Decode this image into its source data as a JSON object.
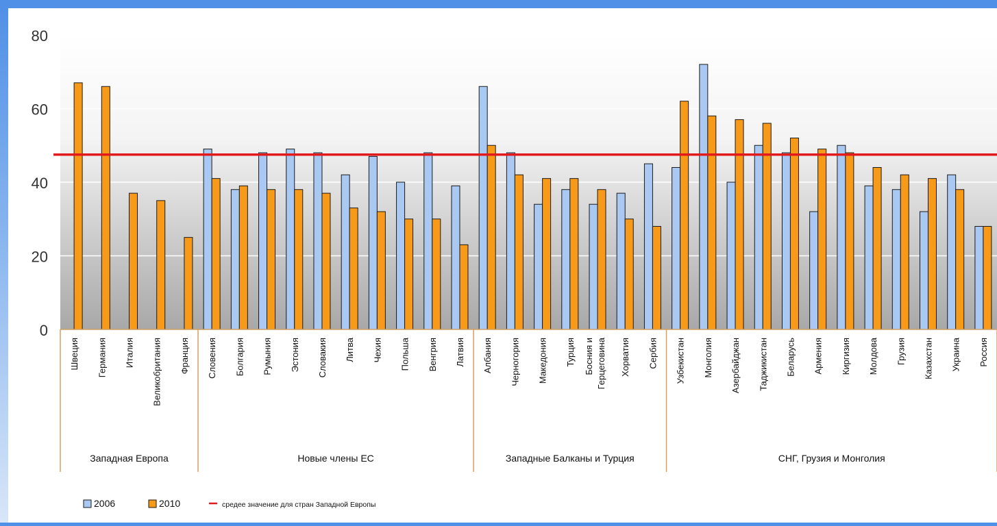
{
  "chart_data": {
    "type": "bar",
    "ylim": [
      0,
      80
    ],
    "yticks": [
      0,
      20,
      40,
      60,
      80
    ],
    "grid": true,
    "legend_position": "bottom-left",
    "colors": {
      "s2006": "#a9c8f2",
      "s2010": "#f79a1a",
      "avg": "#e31a1c",
      "axis": "#d4a060",
      "bar_stroke": "#1a1a1a"
    },
    "series": [
      {
        "name": "2006",
        "values": [
          null,
          null,
          null,
          null,
          null,
          49,
          38,
          48,
          49,
          48,
          42,
          47,
          40,
          48,
          39,
          66,
          48,
          34,
          38,
          34,
          37,
          45,
          44,
          72,
          40,
          50,
          48,
          32,
          50,
          39,
          38,
          32,
          42,
          28
        ]
      },
      {
        "name": "2010",
        "values": [
          67,
          66,
          37,
          35,
          25,
          41,
          39,
          38,
          38,
          37,
          33,
          32,
          30,
          30,
          23,
          50,
          42,
          41,
          41,
          38,
          30,
          28,
          62,
          58,
          57,
          56,
          52,
          49,
          48,
          44,
          42,
          41,
          38,
          28
        ]
      }
    ],
    "reference_line": {
      "name": "средее значение для стран Западной Европы",
      "value": 47.5
    },
    "categories": [
      "Швеция",
      "Германия",
      "Италия",
      "Великобритания",
      "Франция",
      "Словения",
      "Болгария",
      "Румыния",
      "Эстония",
      "Словакия",
      "Литва",
      "Чехия",
      "Польша",
      "Венгрия",
      "Латвия",
      "Албания",
      "Черногория",
      "Македония",
      "Турция",
      "Босния и Герцеговина",
      "Хорватия",
      "Сербия",
      "Узбекистан",
      "Монголия",
      "Азербайджан",
      "Таджикистан",
      "Беларусь",
      "Армения",
      "Киргизия",
      "Молдова",
      "Грузия",
      "Казахстан",
      "Украина",
      "Россия"
    ],
    "groups": [
      {
        "name": "Западная Европа",
        "start": 0,
        "end": 4
      },
      {
        "name": "Новые члены ЕС",
        "start": 5,
        "end": 14
      },
      {
        "name": "Западные Балканы и Турция",
        "start": 15,
        "end": 21
      },
      {
        "name": "СНГ, Грузия и  Монголия",
        "start": 22,
        "end": 33
      }
    ]
  }
}
